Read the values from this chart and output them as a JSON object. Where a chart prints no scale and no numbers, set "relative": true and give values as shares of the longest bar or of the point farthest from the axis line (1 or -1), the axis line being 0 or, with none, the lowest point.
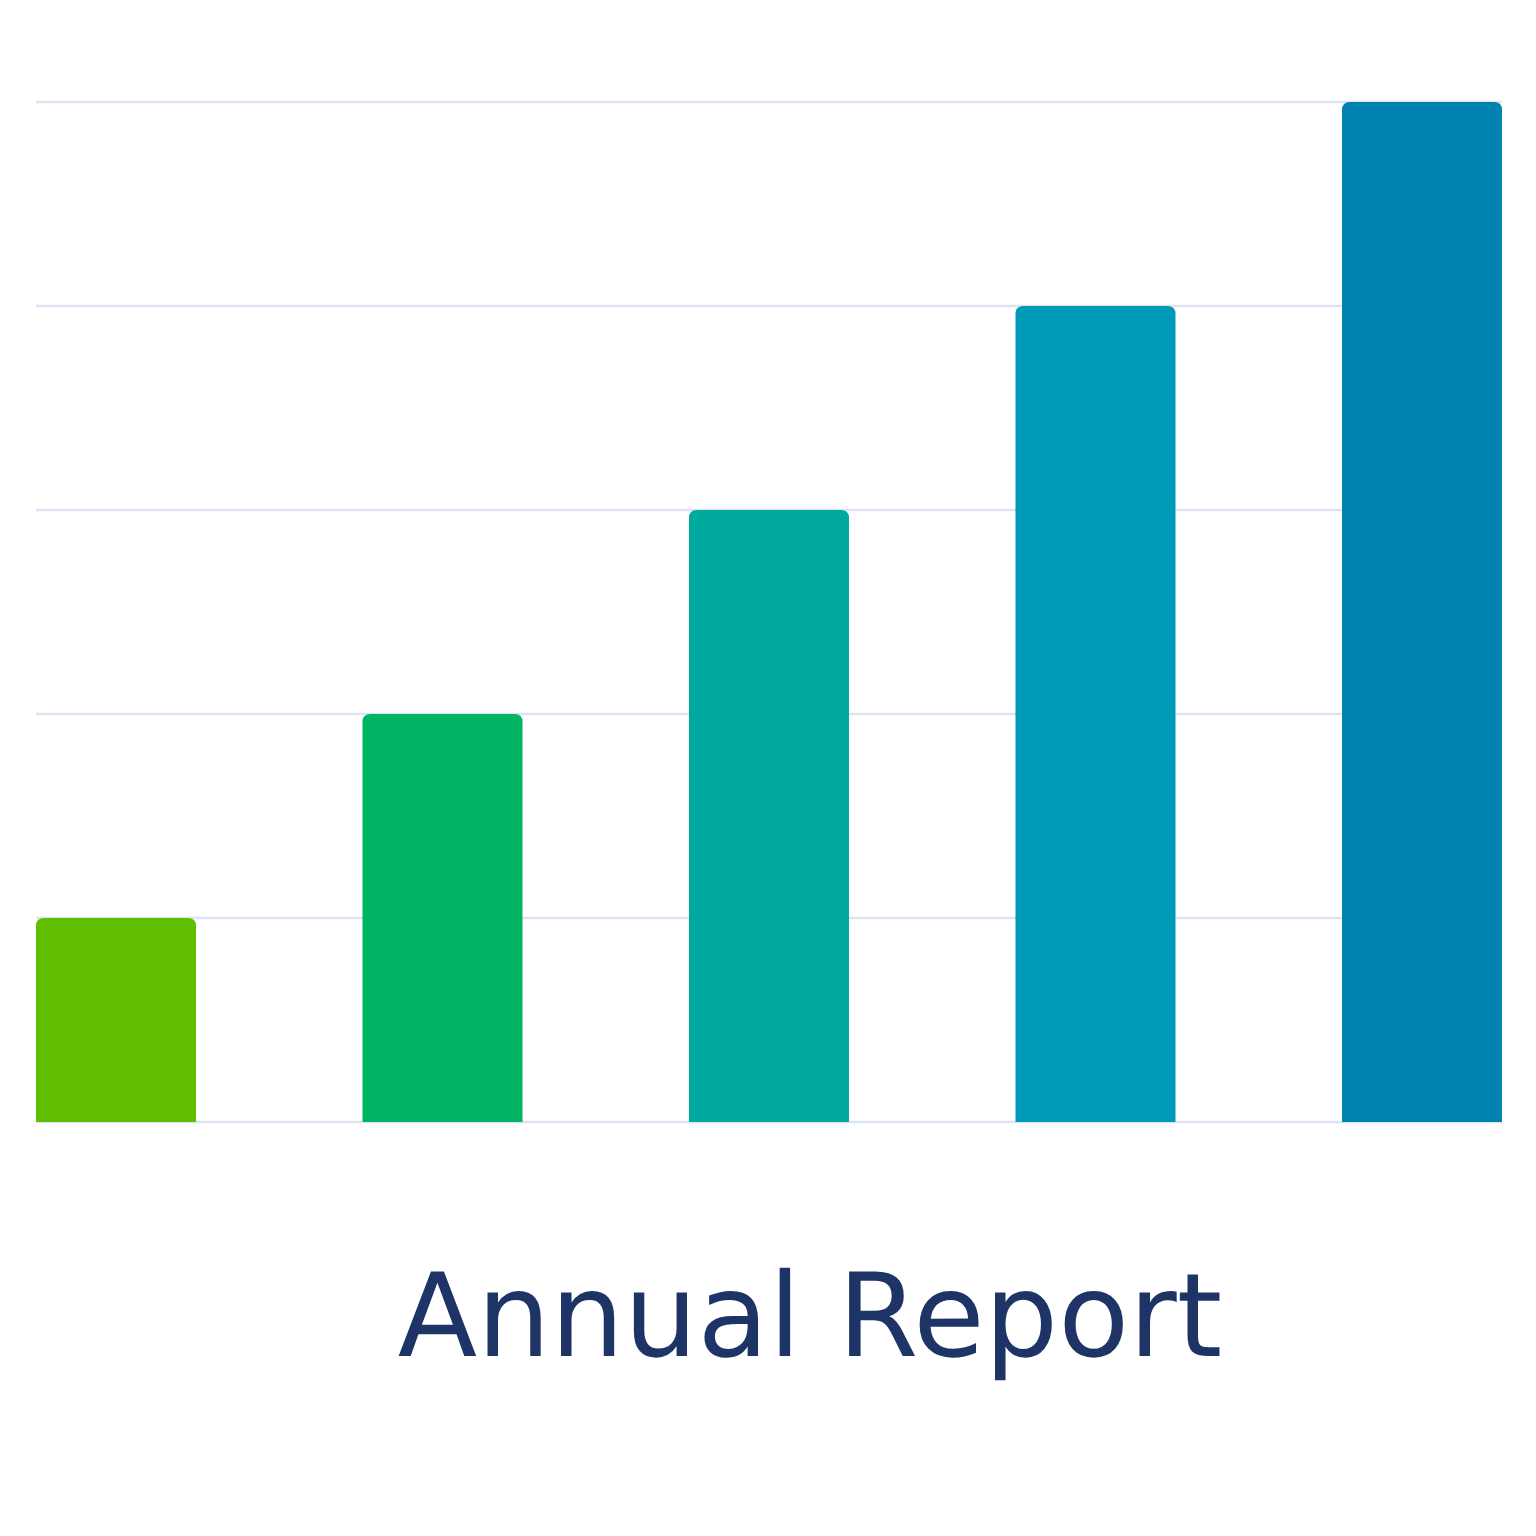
{
  "chart_data": {
    "type": "bar",
    "title": "Annual Report",
    "relative": true,
    "categories": [
      null,
      null,
      null,
      null,
      null
    ],
    "values": [
      0.2,
      0.4,
      0.6,
      0.8,
      1
    ],
    "colors": [
      "#5fbe00",
      "#00b464",
      "#00a99d",
      "#009ab9",
      "#0083b0"
    ],
    "grid": "y"
  }
}
